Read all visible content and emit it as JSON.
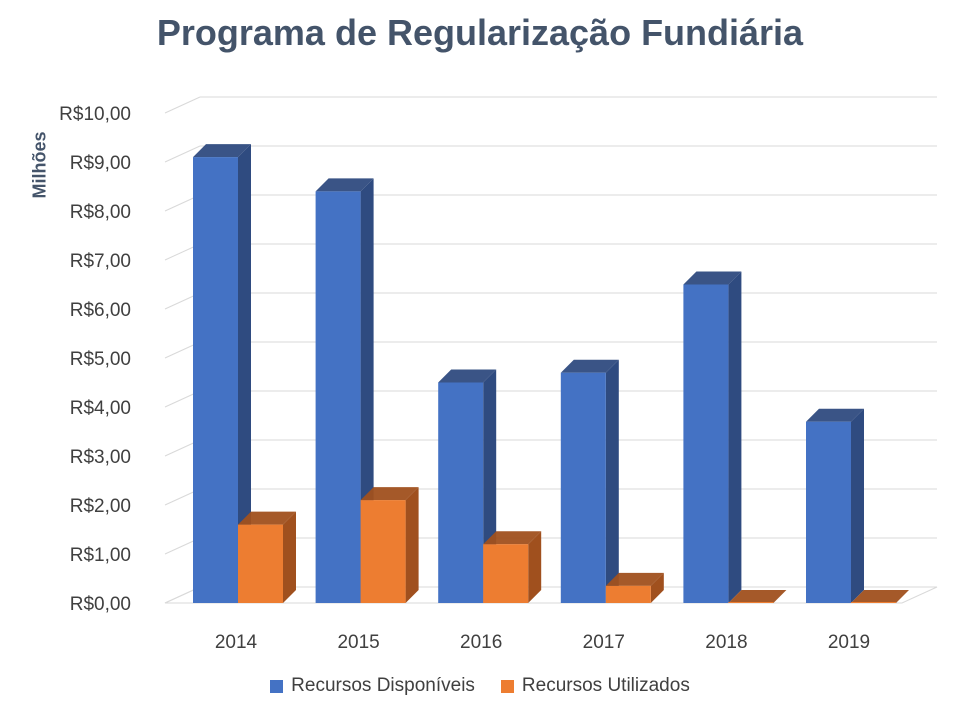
{
  "title": "Programa de Regularização Fundiária",
  "chart_data": {
    "type": "bar",
    "title": "Programa de Regularização Fundiária",
    "ylabel": "Milhões",
    "xlabel": "",
    "categories": [
      "2014",
      "2015",
      "2016",
      "2017",
      "2018",
      "2019"
    ],
    "yticks": [
      "R$0,00",
      "R$1,00",
      "R$2,00",
      "R$3,00",
      "R$4,00",
      "R$5,00",
      "R$6,00",
      "R$7,00",
      "R$8,00",
      "R$9,00",
      "R$10,00"
    ],
    "ylim": [
      0,
      10
    ],
    "grid": true,
    "three_d": true,
    "legend_position": "bottom",
    "series": [
      {
        "name": "Recursos Disponíveis",
        "color": "#4472c4",
        "side_color": "#2f4b80",
        "values": [
          9.1,
          8.4,
          4.5,
          4.7,
          6.5,
          3.7
        ]
      },
      {
        "name": "Recursos Utilizados",
        "color": "#ed7d31",
        "side_color": "#a0501e",
        "values": [
          1.6,
          2.1,
          1.2,
          0.35,
          0.0,
          0.0
        ]
      }
    ]
  }
}
